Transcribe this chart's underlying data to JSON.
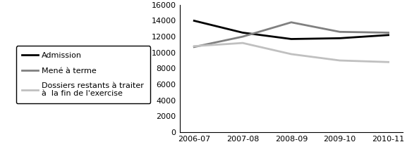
{
  "years": [
    "2006-07",
    "2007-08",
    "2008-09",
    "2009-10",
    "2010-11"
  ],
  "admission": [
    14000,
    12500,
    11700,
    11800,
    12200
  ],
  "mene_a_terme": [
    10700,
    12000,
    13800,
    12600,
    12500
  ],
  "dossiers_restants": [
    10800,
    11200,
    9800,
    9000,
    8800
  ],
  "admission_color": "#000000",
  "mene_a_terme_color": "#808080",
  "dossiers_restants_color": "#c0c0c0",
  "ylim": [
    0,
    16000
  ],
  "yticks": [
    0,
    2000,
    4000,
    6000,
    8000,
    10000,
    12000,
    14000,
    16000
  ],
  "legend_labels": [
    "Admission",
    "Mené à terme",
    "Dossiers restants à traiter\nà  la fin de l'exercise"
  ],
  "line_width": 2.0,
  "legend_fontsize": 8,
  "tick_fontsize": 8,
  "fig_width": 5.77,
  "fig_height": 2.29
}
